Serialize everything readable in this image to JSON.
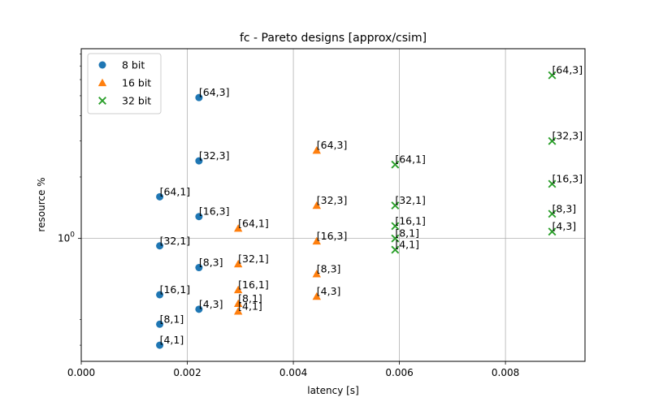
{
  "chart_data": {
    "type": "scatter",
    "title": "fc - Pareto designs [approx/csim]",
    "xlabel": "latency [s]",
    "ylabel": "resource %",
    "xlim": [
      0,
      0.0095
    ],
    "ylim": [
      0.25,
      8.5
    ],
    "y_scale": "log",
    "x_ticks": [
      0,
      0.002,
      0.004,
      0.006,
      0.008
    ],
    "x_tick_labels": [
      "0.000",
      "0.002",
      "0.004",
      "0.006",
      "0.008"
    ],
    "y_ticks": [
      1
    ],
    "y_tick_labels": [
      "10^0"
    ],
    "y_minor_ticks": [
      0.3,
      0.4,
      2,
      3,
      4,
      5,
      6,
      7,
      8
    ],
    "grid": true,
    "legend_position": "top-left",
    "series": [
      {
        "name": "8 bit",
        "marker": "circle",
        "color": "#1f77b4",
        "points": [
          {
            "x": 0.00148,
            "y": 0.3,
            "label": "[4,1]"
          },
          {
            "x": 0.00148,
            "y": 0.38,
            "label": "[8,1]"
          },
          {
            "x": 0.00148,
            "y": 0.53,
            "label": "[16,1]"
          },
          {
            "x": 0.00148,
            "y": 0.92,
            "label": "[32,1]"
          },
          {
            "x": 0.00148,
            "y": 1.6,
            "label": "[64,1]"
          },
          {
            "x": 0.00222,
            "y": 0.45,
            "label": "[4,3]"
          },
          {
            "x": 0.00222,
            "y": 0.72,
            "label": "[8,3]"
          },
          {
            "x": 0.00222,
            "y": 1.28,
            "label": "[16,3]"
          },
          {
            "x": 0.00222,
            "y": 2.4,
            "label": "[32,3]"
          },
          {
            "x": 0.00222,
            "y": 4.9,
            "label": "[64,3]"
          }
        ]
      },
      {
        "name": "16 bit",
        "marker": "triangle",
        "color": "#ff7f0e",
        "points": [
          {
            "x": 0.00296,
            "y": 0.44,
            "label": "[4,1]"
          },
          {
            "x": 0.00296,
            "y": 0.48,
            "label": "[8,1]"
          },
          {
            "x": 0.00296,
            "y": 0.56,
            "label": "[16,1]"
          },
          {
            "x": 0.00296,
            "y": 0.75,
            "label": "[32,1]"
          },
          {
            "x": 0.00296,
            "y": 1.12,
            "label": "[64,1]"
          },
          {
            "x": 0.00444,
            "y": 0.52,
            "label": "[4,3]"
          },
          {
            "x": 0.00444,
            "y": 0.67,
            "label": "[8,3]"
          },
          {
            "x": 0.00444,
            "y": 0.97,
            "label": "[16,3]"
          },
          {
            "x": 0.00444,
            "y": 1.45,
            "label": "[32,3]"
          },
          {
            "x": 0.00444,
            "y": 2.7,
            "label": "[64,3]"
          }
        ]
      },
      {
        "name": "32 bit",
        "marker": "x",
        "color": "#2ca02c",
        "points": [
          {
            "x": 0.00592,
            "y": 0.88,
            "label": "[4,1]"
          },
          {
            "x": 0.00592,
            "y": 1.0,
            "label": "[8,1]"
          },
          {
            "x": 0.00592,
            "y": 1.15,
            "label": "[16,1]"
          },
          {
            "x": 0.00592,
            "y": 1.45,
            "label": "[32,1]"
          },
          {
            "x": 0.00592,
            "y": 2.3,
            "label": "[64,1]"
          },
          {
            "x": 0.00888,
            "y": 1.08,
            "label": "[4,3]"
          },
          {
            "x": 0.00888,
            "y": 1.32,
            "label": "[8,3]"
          },
          {
            "x": 0.00888,
            "y": 1.85,
            "label": "[16,3]"
          },
          {
            "x": 0.00888,
            "y": 3.0,
            "label": "[32,3]"
          },
          {
            "x": 0.00888,
            "y": 6.3,
            "label": "[64,3]"
          }
        ]
      }
    ]
  }
}
